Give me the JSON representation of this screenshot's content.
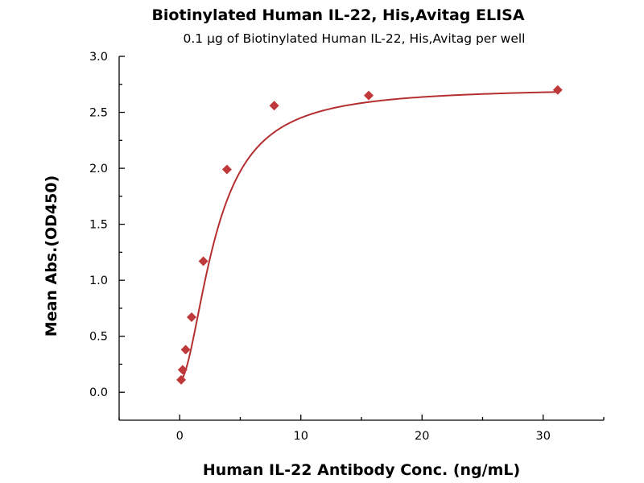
{
  "chart_data": {
    "type": "scatter",
    "title": "Biotinylated Human IL-22, His,Avitag ELISA",
    "subtitle": "0.1 μg of Biotinylated Human IL-22, His,Avitag per well",
    "xlabel": "Human IL-22 Antibody Conc. (ng/mL)",
    "ylabel": "Mean Abs.(OD450)",
    "xlim": [
      -5,
      35
    ],
    "ylim": [
      -0.25,
      3.0
    ],
    "xticks": [
      0,
      10,
      20,
      30
    ],
    "yticks": [
      0.0,
      0.5,
      1.0,
      1.5,
      2.0,
      2.5,
      3.0
    ],
    "xticklabels": [
      "0",
      "10",
      "20",
      "30"
    ],
    "yticklabels": [
      "0.0",
      "0.5",
      "1.0",
      "1.5",
      "2.0",
      "2.5",
      "3.0"
    ],
    "grid": false,
    "legend": "none",
    "series": [
      {
        "marker": "diamond",
        "color": "#c0393a",
        "x": [
          0.12,
          0.24,
          0.49,
          0.98,
          1.95,
          3.9,
          7.8,
          15.6,
          31.2
        ],
        "y": [
          0.11,
          0.2,
          0.38,
          0.67,
          1.17,
          1.99,
          2.56,
          2.65,
          2.7
        ]
      }
    ],
    "fit_curve": {
      "color": "#b52f30",
      "model": "4PL",
      "bottom": 0.1,
      "top": 2.72,
      "ec50": 3.0,
      "hill": 1.8
    }
  }
}
